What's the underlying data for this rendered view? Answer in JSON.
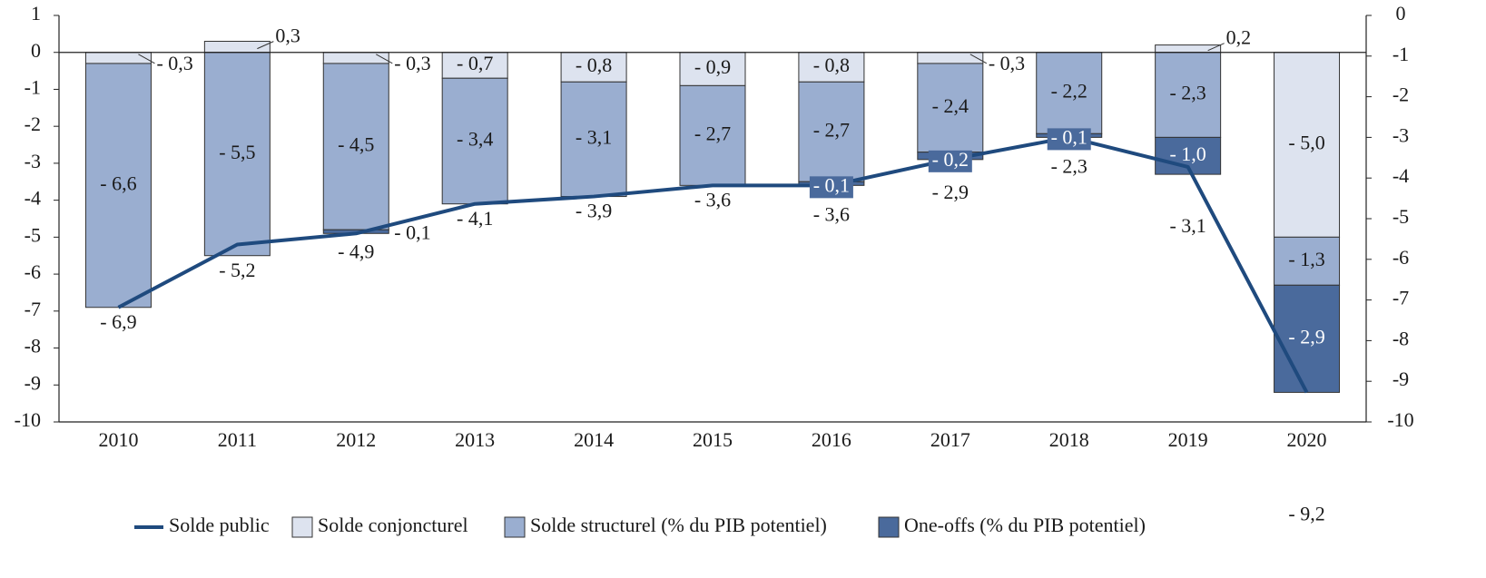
{
  "chart_data": {
    "type": "bar",
    "subtype": "stacked bar with line overlay",
    "categories": [
      "2010",
      "2011",
      "2012",
      "2013",
      "2014",
      "2015",
      "2016",
      "2017",
      "2018",
      "2019",
      "2020"
    ],
    "series": [
      {
        "name": "Solde conjoncturel",
        "kind": "bar",
        "color": "#dde3ef",
        "values": [
          -0.3,
          0.3,
          -0.3,
          -0.7,
          -0.8,
          -0.9,
          -0.8,
          -0.3,
          0.0,
          0.2,
          -5.0
        ],
        "labels": [
          "- 0,3",
          "0,3",
          "- 0,3",
          "- 0,7",
          "- 0,8",
          "- 0,9",
          "- 0,8",
          "- 0,3",
          "",
          "0,2",
          "- 5,0"
        ]
      },
      {
        "name": "Solde structurel (% du PIB potentiel)",
        "kind": "bar",
        "color": "#9aaed0",
        "values": [
          -6.6,
          -5.5,
          -4.5,
          -3.4,
          -3.1,
          -2.7,
          -2.7,
          -2.4,
          -2.2,
          -2.3,
          -1.3
        ],
        "labels": [
          "- 6,6",
          "- 5,5",
          "- 4,5",
          "- 3,4",
          "- 3,1",
          "- 2,7",
          "- 2,7",
          "- 2,4",
          "- 2,2",
          "- 2,3",
          "- 1,3"
        ]
      },
      {
        "name": "One-offs (% du PIB potentiel)",
        "kind": "bar",
        "color": "#4a6a9c",
        "values": [
          0.0,
          0.0,
          -0.1,
          0.0,
          0.0,
          0.0,
          -0.1,
          -0.2,
          -0.1,
          -1.0,
          -2.9
        ],
        "labels": [
          "",
          "",
          "- 0,1",
          "",
          "",
          "",
          "- 0,1",
          "- 0,2",
          "- 0,1",
          "- 1,0",
          "- 2,9"
        ]
      },
      {
        "name": "Solde public",
        "kind": "line",
        "color": "#1f4a7e",
        "values": [
          -6.9,
          -5.2,
          -4.9,
          -4.1,
          -3.9,
          -3.6,
          -3.6,
          -2.9,
          -2.3,
          -3.1,
          -9.2
        ],
        "labels": [
          "- 6,9",
          "- 5,2",
          "- 4,9",
          "- 4,1",
          "- 3,9",
          "- 3,6",
          "- 3,6",
          "- 2,9",
          "- 2,3",
          "- 3,1",
          "- 9,2"
        ]
      }
    ],
    "y_left": {
      "min": -10,
      "max": 1,
      "ticks": [
        "1",
        "0",
        "-1",
        "-2",
        "-3",
        "-4",
        "-5",
        "-6",
        "-7",
        "-8",
        "-9",
        "-10"
      ]
    },
    "y_right": {
      "min": -10,
      "max": 0,
      "ticks": [
        "0",
        "-1",
        "-2",
        "-3",
        "-4",
        "-5",
        "-6",
        "-7",
        "-8",
        "-9",
        "-10"
      ]
    },
    "title": "",
    "xlabel": "",
    "ylabel": "",
    "grid": false,
    "legend_position": "bottom"
  }
}
